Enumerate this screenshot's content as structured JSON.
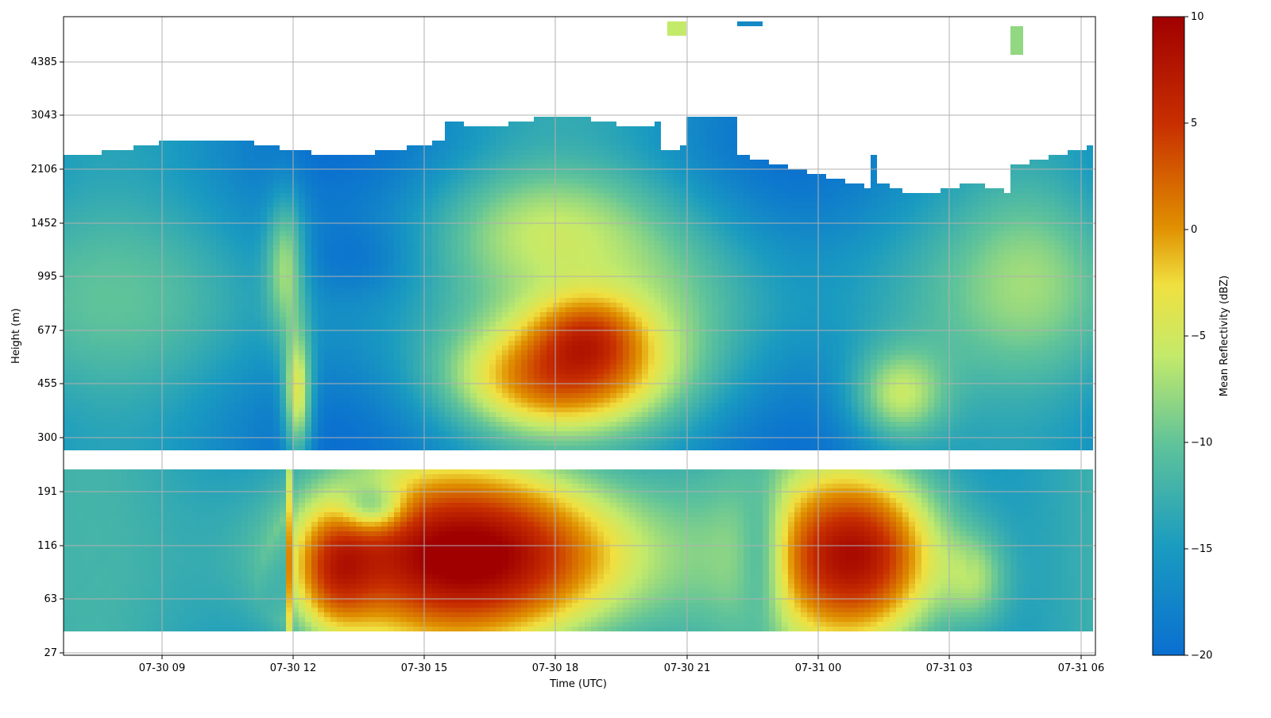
{
  "chart_data": {
    "type": "heatmap",
    "title": "",
    "xlabel": "Time (UTC)",
    "ylabel": "Height (m)",
    "x_ticks": [
      "07-30 09",
      "07-30 12",
      "07-30 15",
      "07-30 18",
      "07-30 21",
      "07-31 00",
      "07-31 03",
      "07-31 06"
    ],
    "x_range_hours": [
      6.75,
      30.3
    ],
    "y_ticks": [
      "27",
      "63",
      "116",
      "191",
      "300",
      "455",
      "677",
      "995",
      "1452",
      "2106",
      "3043",
      "4385"
    ],
    "y_scale": "nonlinear (irregular range gates)",
    "grid": true,
    "colorbar": {
      "label": "Mean Reflectivity (dBZ)",
      "min": -20,
      "max": 10,
      "ticks": [
        "10",
        "5",
        "0",
        "−5",
        "−10",
        "−15",
        "−20"
      ],
      "colormap": "rainbow (blue to dark red)"
    },
    "colors": {
      "low": "#1e73c8",
      "mid_low": "#7fc98a",
      "mid": "#f2dc3a",
      "mid_high": "#de7a00",
      "high": "#a80000"
    }
  }
}
